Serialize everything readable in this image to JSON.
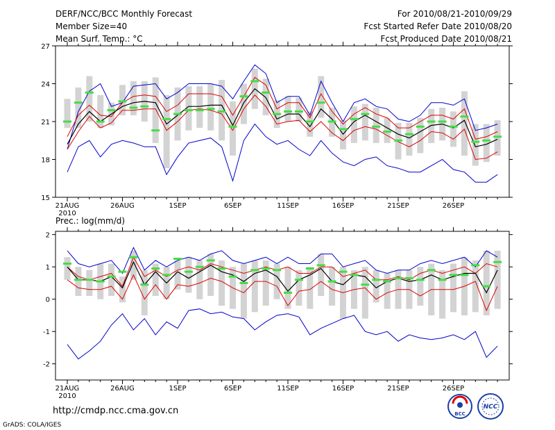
{
  "header": {
    "title": "DERF/NCC/BCC Monthly Forecast",
    "member_size": "Member Size=40",
    "variable": "Mean Surf. Temp.: °C",
    "forecast_period": "For 2010/08/21-2010/09/29",
    "started_date": "Fcst Started Refer Date 2010/08/20",
    "produced_date": "Fcst Produced Date 2010/08/21"
  },
  "footer": {
    "url": "http://cmdp.ncc.cma.gov.cn",
    "grads_credit": "GrADS: COLA/IGES",
    "logo_bcc": "BCC",
    "logo_ncc": "NCC"
  },
  "colors": {
    "max_line": "#0000cc",
    "mean_band_line": "#dd0000",
    "ensemble_mean": "#000000",
    "observed_bar": "#d3d3d3",
    "climatology_mark": "#44dd44"
  },
  "chart_data": [
    {
      "type": "line",
      "title": "Mean Surf. Temp.: °C",
      "ylim": [
        15,
        27
      ],
      "yticks": [
        "15",
        "18",
        "21",
        "24",
        "27"
      ],
      "xticks": [
        "21AUG",
        "26AUG",
        "1SEP",
        "6SEP",
        "11SEP",
        "16SEP",
        "21SEP",
        "26SEP"
      ],
      "xsub": "2010",
      "x_days": 40,
      "series": [
        {
          "name": "max",
          "values": [
            18.8,
            21.8,
            23.4,
            24.0,
            22.2,
            22.5,
            23.8,
            23.9,
            24.0,
            22.8,
            23.3,
            24.0,
            24.0,
            24.0,
            23.8,
            22.8,
            24.2,
            25.5,
            24.8,
            22.5,
            23.0,
            23.0,
            21.5,
            24.2,
            22.5,
            21.0,
            22.5,
            22.8,
            22.2,
            22.0,
            21.2,
            21.0,
            21.5,
            22.5,
            22.5,
            22.3,
            22.8,
            20.3,
            20.5,
            20.8
          ]
        },
        {
          "name": "upper",
          "values": [
            19.8,
            21.5,
            22.3,
            21.5,
            21.4,
            22.5,
            23.0,
            23.1,
            23.0,
            21.8,
            22.3,
            23.2,
            23.2,
            23.2,
            23.0,
            21.5,
            23.0,
            24.5,
            23.9,
            22.0,
            22.5,
            22.5,
            21.3,
            23.2,
            21.8,
            20.8,
            21.6,
            22.1,
            21.6,
            21.3,
            20.5,
            20.5,
            21.0,
            21.5,
            21.5,
            21.2,
            22.0,
            19.6,
            19.8,
            20.2
          ]
        },
        {
          "name": "mean",
          "values": [
            19.2,
            20.8,
            21.8,
            21.0,
            21.6,
            22.2,
            22.5,
            22.6,
            22.5,
            20.8,
            21.5,
            22.2,
            22.2,
            22.3,
            22.3,
            20.7,
            22.5,
            23.6,
            22.9,
            21.2,
            21.6,
            21.6,
            20.6,
            22.0,
            21.2,
            20.0,
            21.0,
            21.5,
            21.0,
            20.5,
            20.0,
            19.7,
            20.2,
            20.7,
            20.8,
            20.5,
            21.1,
            19.0,
            19.2,
            19.6
          ]
        },
        {
          "name": "lower",
          "values": [
            18.8,
            20.2,
            21.4,
            20.5,
            20.9,
            21.9,
            21.9,
            22.0,
            22.0,
            20.3,
            21.0,
            21.9,
            22.0,
            21.9,
            21.6,
            20.3,
            22.0,
            23.1,
            22.2,
            20.8,
            21.0,
            21.1,
            20.2,
            21.0,
            20.1,
            19.5,
            20.3,
            20.6,
            20.4,
            19.9,
            19.4,
            19.0,
            19.5,
            20.2,
            20.1,
            19.6,
            20.4,
            18.0,
            18.1,
            18.6
          ]
        },
        {
          "name": "min",
          "values": [
            17.0,
            19.0,
            19.5,
            18.2,
            19.2,
            19.5,
            19.3,
            19.0,
            19.0,
            16.8,
            18.2,
            19.3,
            19.5,
            19.7,
            19.0,
            16.3,
            19.5,
            20.8,
            19.8,
            19.2,
            19.5,
            18.8,
            18.3,
            19.5,
            18.5,
            17.8,
            17.5,
            18.0,
            18.2,
            17.5,
            17.3,
            17.0,
            17.0,
            17.5,
            18.0,
            17.2,
            17.0,
            16.2,
            16.2,
            16.8
          ]
        },
        {
          "name": "climatology",
          "values": [
            21.0,
            22.5,
            23.3,
            21.0,
            21.9,
            22.6,
            22.1,
            22.2,
            20.3,
            21.2,
            21.6,
            21.9,
            21.9,
            22.0,
            21.8,
            20.6,
            23.0,
            24.2,
            23.3,
            21.6,
            21.8,
            21.8,
            21.0,
            22.5,
            21.0,
            20.4,
            21.2,
            21.6,
            20.6,
            20.2,
            19.5,
            20.0,
            20.6,
            21.0,
            21.0,
            20.6,
            21.4,
            19.4,
            19.5,
            19.8
          ]
        }
      ],
      "bars": [
        [
          20.5,
          22.8
        ],
        [
          20.5,
          23.7
        ],
        [
          21.0,
          24.6
        ],
        [
          20.5,
          23.1
        ],
        [
          20.7,
          22.5
        ],
        [
          21.5,
          23.9
        ],
        [
          21.5,
          24.2
        ],
        [
          21.0,
          24.2
        ],
        [
          19.3,
          24.5
        ],
        [
          17.3,
          23.1
        ],
        [
          19.5,
          23.7
        ],
        [
          20.3,
          23.8
        ],
        [
          20.5,
          23.8
        ],
        [
          20.3,
          24.0
        ],
        [
          19.5,
          24.3
        ],
        [
          18.3,
          22.6
        ],
        [
          20.8,
          24.0
        ],
        [
          22.0,
          25.2
        ],
        [
          21.5,
          24.4
        ],
        [
          20.5,
          22.7
        ],
        [
          21.0,
          23.0
        ],
        [
          21.0,
          22.9
        ],
        [
          19.8,
          21.8
        ],
        [
          21.3,
          24.6
        ],
        [
          19.8,
          22.1
        ],
        [
          18.8,
          21.1
        ],
        [
          19.3,
          22.2
        ],
        [
          19.5,
          22.4
        ],
        [
          19.3,
          22.1
        ],
        [
          19.3,
          21.3
        ],
        [
          18.0,
          20.9
        ],
        [
          18.3,
          20.9
        ],
        [
          18.5,
          21.3
        ],
        [
          19.3,
          22.0
        ],
        [
          19.5,
          22.1
        ],
        [
          19.0,
          21.8
        ],
        [
          18.3,
          23.4
        ],
        [
          17.5,
          20.8
        ],
        [
          17.8,
          20.8
        ],
        [
          18.3,
          21.1
        ]
      ]
    },
    {
      "type": "line",
      "title": "Prec.: log(mm/d)",
      "ylim": [
        -2.5,
        2.1
      ],
      "yticks": [
        "-2",
        "-1",
        "0",
        "1",
        "2"
      ],
      "xticks": [
        "21AUG",
        "26AUG",
        "1SEP",
        "6SEP",
        "11SEP",
        "16SEP",
        "21SEP",
        "26SEP"
      ],
      "xsub": "2010",
      "x_days": 40,
      "series": [
        {
          "name": "max",
          "values": [
            1.5,
            1.1,
            1.0,
            1.1,
            1.2,
            0.8,
            1.6,
            0.9,
            1.2,
            1.0,
            1.2,
            1.3,
            1.2,
            1.4,
            1.5,
            1.2,
            1.1,
            1.2,
            1.3,
            1.1,
            1.3,
            1.1,
            1.1,
            1.4,
            1.4,
            1.0,
            1.1,
            1.2,
            0.9,
            0.8,
            0.9,
            0.9,
            1.1,
            1.2,
            1.1,
            1.2,
            1.3,
            1.0,
            1.5,
            1.3
          ]
        },
        {
          "name": "upper",
          "values": [
            1.0,
            0.7,
            0.6,
            0.7,
            0.8,
            0.4,
            1.3,
            0.7,
            0.9,
            0.7,
            0.9,
            1.0,
            0.9,
            1.1,
            1.0,
            0.9,
            0.8,
            0.9,
            1.0,
            0.9,
            1.0,
            0.8,
            0.8,
            1.0,
            1.0,
            0.7,
            0.8,
            0.9,
            0.6,
            0.6,
            0.7,
            0.6,
            0.8,
            0.9,
            0.8,
            0.9,
            1.0,
            0.8,
            1.1,
            1.0
          ]
        },
        {
          "name": "mean",
          "values": [
            1.0,
            0.6,
            0.6,
            0.55,
            0.7,
            0.35,
            1.15,
            0.45,
            0.85,
            0.5,
            0.85,
            0.65,
            0.85,
            1.05,
            0.85,
            0.75,
            0.55,
            0.8,
            0.9,
            0.7,
            0.25,
            0.6,
            0.75,
            0.95,
            0.55,
            0.45,
            0.75,
            0.7,
            0.35,
            0.55,
            0.65,
            0.55,
            0.6,
            0.75,
            0.6,
            0.7,
            0.8,
            0.8,
            0.2,
            0.9
          ]
        },
        {
          "name": "lower",
          "values": [
            0.6,
            0.35,
            0.3,
            0.3,
            0.4,
            0.0,
            0.75,
            0.0,
            0.45,
            0.0,
            0.45,
            0.4,
            0.5,
            0.65,
            0.55,
            0.35,
            0.2,
            0.55,
            0.55,
            0.4,
            -0.2,
            0.25,
            0.3,
            0.55,
            0.3,
            0.2,
            0.3,
            0.35,
            0.0,
            0.2,
            0.3,
            0.3,
            0.1,
            0.3,
            0.3,
            0.3,
            0.4,
            0.55,
            -0.35,
            0.4
          ]
        },
        {
          "name": "min",
          "values": [
            -1.4,
            -1.85,
            -1.6,
            -1.3,
            -0.8,
            -0.45,
            -0.95,
            -0.6,
            -1.1,
            -0.7,
            -0.9,
            -0.35,
            -0.3,
            -0.45,
            -0.4,
            -0.55,
            -0.6,
            -0.95,
            -0.7,
            -0.5,
            -0.45,
            -0.55,
            -1.1,
            -0.9,
            -0.75,
            -0.6,
            -0.5,
            -1.0,
            -1.1,
            -1.0,
            -1.3,
            -1.1,
            -1.2,
            -1.25,
            -1.2,
            -1.1,
            -1.25,
            -1.0,
            -1.8,
            -1.45
          ]
        },
        {
          "name": "climatology",
          "values": [
            1.1,
            0.6,
            0.6,
            0.55,
            0.7,
            0.85,
            1.3,
            0.45,
            0.95,
            0.75,
            1.25,
            0.85,
            1.0,
            1.2,
            0.95,
            0.7,
            0.5,
            0.9,
            0.95,
            0.9,
            0.2,
            0.6,
            0.95,
            1.05,
            0.55,
            0.85,
            0.75,
            0.45,
            0.6,
            0.55,
            0.65,
            0.65,
            0.6,
            0.9,
            0.6,
            0.75,
            0.75,
            1.05,
            0.4,
            1.15
          ]
        }
      ],
      "bars": [
        [
          0.6,
          1.3
        ],
        [
          0.1,
          1.0
        ],
        [
          0.1,
          0.9
        ],
        [
          0.0,
          1.1
        ],
        [
          0.1,
          1.1
        ],
        [
          -0.1,
          0.7
        ],
        [
          0.6,
          1.5
        ],
        [
          -0.5,
          0.9
        ],
        [
          0.1,
          1.1
        ],
        [
          0.0,
          1.0
        ],
        [
          0.3,
          1.2
        ],
        [
          0.2,
          1.3
        ],
        [
          0.0,
          1.2
        ],
        [
          0.1,
          1.4
        ],
        [
          -0.2,
          1.2
        ],
        [
          -0.3,
          1.0
        ],
        [
          -0.6,
          1.1
        ],
        [
          -0.4,
          1.2
        ],
        [
          -0.2,
          1.2
        ],
        [
          0.0,
          1.1
        ],
        [
          -0.3,
          1.0
        ],
        [
          -0.2,
          0.9
        ],
        [
          -0.3,
          1.0
        ],
        [
          0.1,
          1.4
        ],
        [
          -0.2,
          1.0
        ],
        [
          -0.6,
          1.0
        ],
        [
          -0.3,
          0.9
        ],
        [
          -0.6,
          1.0
        ],
        [
          -0.1,
          0.9
        ],
        [
          -0.3,
          0.8
        ],
        [
          -0.3,
          0.9
        ],
        [
          -0.3,
          0.9
        ],
        [
          -0.2,
          1.0
        ],
        [
          -0.5,
          1.1
        ],
        [
          -0.6,
          0.9
        ],
        [
          -0.4,
          1.1
        ],
        [
          -0.5,
          1.3
        ],
        [
          -0.4,
          1.2
        ],
        [
          -0.5,
          1.5
        ],
        [
          -0.3,
          1.5
        ]
      ]
    }
  ]
}
